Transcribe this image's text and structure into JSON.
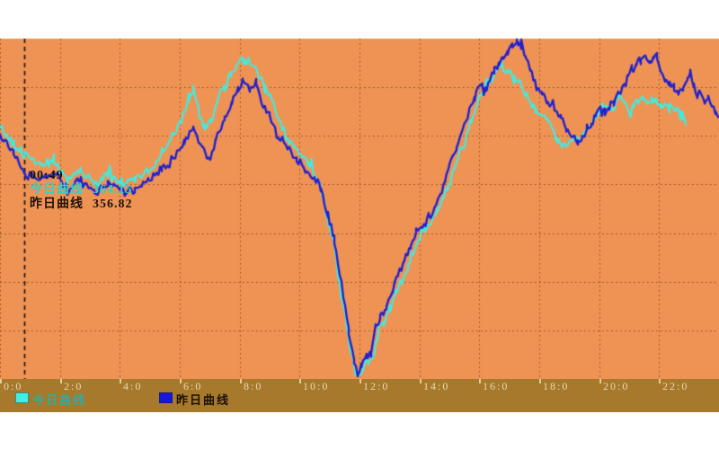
{
  "chart_data": {
    "type": "line",
    "title": "",
    "xlabel": "",
    "ylabel": "",
    "plot_bg": "#ef9355",
    "strip_bg": "#a6792c",
    "grid_color": "#6e3a14",
    "x_range_hours": [
      0,
      24
    ],
    "ylim": [
      272,
      412
    ],
    "y_gridline_count": 6,
    "grid": "dotted",
    "legend_position": "bottom",
    "x_ticks": [
      {
        "label": "0:0",
        "hour": 0
      },
      {
        "label": "2:0",
        "hour": 2
      },
      {
        "label": "4:0",
        "hour": 4
      },
      {
        "label": "6:0",
        "hour": 6
      },
      {
        "label": "8:0",
        "hour": 8
      },
      {
        "label": "10:0",
        "hour": 10
      },
      {
        "label": "12:0",
        "hour": 12
      },
      {
        "label": "14:0",
        "hour": 14
      },
      {
        "label": "16:0",
        "hour": 16
      },
      {
        "label": "18:0",
        "hour": 18
      },
      {
        "label": "20:0",
        "hour": 20
      },
      {
        "label": "22:0",
        "hour": 22
      }
    ],
    "crosshair": {
      "hour": 0.82,
      "time_label": "00:49",
      "color": "#1a1a1a",
      "style": "dashed"
    },
    "series": [
      {
        "name": "今日曲线",
        "color": "#45e9dc",
        "points": [
          [
            0,
            375.5
          ],
          [
            0.45,
            369.2
          ],
          [
            0.82,
            364.2
          ],
          [
            1.35,
            359.8
          ],
          [
            1.8,
            360.6
          ],
          [
            2.25,
            354.2
          ],
          [
            2.7,
            357.9
          ],
          [
            3.15,
            352.3
          ],
          [
            3.6,
            355.3
          ],
          [
            4.05,
            352.3
          ],
          [
            4.5,
            353.8
          ],
          [
            4.95,
            357.9
          ],
          [
            5.4,
            364.3
          ],
          [
            5.7,
            371
          ],
          [
            6,
            378.5
          ],
          [
            6.3,
            387.9
          ],
          [
            6.45,
            391.6
          ],
          [
            6.66,
            380.4
          ],
          [
            6.84,
            374.8
          ],
          [
            7.05,
            378.5
          ],
          [
            7.26,
            386
          ],
          [
            7.5,
            391.6
          ],
          [
            7.71,
            397.3
          ],
          [
            7.89,
            401.8
          ],
          [
            8.04,
            404
          ],
          [
            8.19,
            401
          ],
          [
            8.4,
            401.8
          ],
          [
            8.61,
            397.3
          ],
          [
            8.85,
            391.6
          ],
          [
            9.06,
            387.9
          ],
          [
            9.3,
            378.5
          ],
          [
            9.54,
            372.9
          ],
          [
            9.81,
            367.3
          ],
          [
            10.05,
            363.6
          ],
          [
            10.29,
            360.6
          ],
          [
            10.5,
            356.1
          ],
          [
            10.71,
            350.5
          ],
          [
            10.95,
            337.3
          ],
          [
            11.16,
            326.1
          ],
          [
            11.4,
            307.4
          ],
          [
            11.64,
            288.7
          ],
          [
            11.82,
            277.4
          ],
          [
            11.97,
            272.5
          ],
          [
            12.12,
            275.6
          ],
          [
            12.3,
            279.3
          ],
          [
            12.45,
            281.2
          ],
          [
            12.6,
            290.5
          ],
          [
            12.81,
            296.1
          ],
          [
            13.02,
            299.9
          ],
          [
            13.2,
            307.4
          ],
          [
            13.41,
            313
          ],
          [
            13.62,
            318.6
          ],
          [
            13.8,
            324.2
          ],
          [
            14.01,
            329.9
          ],
          [
            14.22,
            333.6
          ],
          [
            14.4,
            337.3
          ],
          [
            14.61,
            340.3
          ],
          [
            14.79,
            346.7
          ],
          [
            14.94,
            350.5
          ],
          [
            15.15,
            357.9
          ],
          [
            15.36,
            365.4
          ],
          [
            15.54,
            371.8
          ],
          [
            15.75,
            378.5
          ],
          [
            15.96,
            386
          ],
          [
            16.14,
            391.6
          ],
          [
            16.35,
            394.3
          ],
          [
            16.5,
            397.3
          ],
          [
            16.65,
            400.3
          ],
          [
            16.74,
            401.8
          ],
          [
            16.86,
            399.1
          ],
          [
            17.01,
            397.3
          ],
          [
            17.16,
            395.4
          ],
          [
            17.34,
            393.5
          ],
          [
            17.52,
            389.8
          ],
          [
            17.7,
            386
          ],
          [
            17.88,
            382.3
          ],
          [
            18.06,
            380.4
          ],
          [
            18.24,
            378.5
          ],
          [
            18.42,
            376.7
          ],
          [
            18.6,
            371
          ],
          [
            18.78,
            367.3
          ],
          [
            18.96,
            368.1
          ],
          [
            19.14,
            371
          ],
          [
            19.32,
            369.2
          ],
          [
            19.5,
            371.8
          ],
          [
            19.65,
            374.8
          ],
          [
            19.8,
            378.5
          ],
          [
            19.95,
            382.3
          ],
          [
            20.1,
            384.2
          ],
          [
            20.25,
            385.3
          ],
          [
            20.4,
            383
          ],
          [
            20.55,
            385.3
          ],
          [
            20.7,
            387.9
          ],
          [
            20.85,
            386
          ],
          [
            21,
            382.3
          ],
          [
            21.15,
            384.2
          ],
          [
            21.3,
            386
          ],
          [
            21.45,
            386.8
          ],
          [
            21.6,
            385.3
          ],
          [
            21.75,
            386.8
          ],
          [
            21.9,
            386
          ],
          [
            22.05,
            384.2
          ],
          [
            22.2,
            385.3
          ],
          [
            22.35,
            383
          ],
          [
            22.5,
            384.2
          ],
          [
            22.65,
            382.3
          ],
          [
            22.74,
            380.4
          ],
          [
            22.83,
            378.5
          ],
          [
            22.89,
            375.9
          ]
        ]
      },
      {
        "name": "昨日曲线",
        "color": "#2222cd",
        "points": [
          [
            0,
            371.8
          ],
          [
            0.45,
            365.4
          ],
          [
            0.82,
            356.8
          ],
          [
            1.35,
            354.2
          ],
          [
            1.8,
            356.8
          ],
          [
            2.25,
            350.5
          ],
          [
            2.7,
            354.2
          ],
          [
            3.15,
            348.6
          ],
          [
            3.6,
            352.3
          ],
          [
            4.05,
            349.3
          ],
          [
            4.5,
            349.7
          ],
          [
            4.95,
            354.2
          ],
          [
            5.4,
            357.9
          ],
          [
            5.85,
            363.6
          ],
          [
            6.15,
            369.2
          ],
          [
            6.45,
            375.9
          ],
          [
            6.75,
            367.3
          ],
          [
            6.96,
            362.8
          ],
          [
            7.2,
            369.2
          ],
          [
            7.5,
            378.5
          ],
          [
            7.74,
            386
          ],
          [
            7.95,
            391.6
          ],
          [
            8.1,
            394.6
          ],
          [
            8.34,
            391.6
          ],
          [
            8.55,
            393.5
          ],
          [
            8.79,
            383.4
          ],
          [
            9,
            380.4
          ],
          [
            9.3,
            371
          ],
          [
            9.6,
            367.3
          ],
          [
            9.9,
            362.4
          ],
          [
            10.2,
            357.9
          ],
          [
            10.5,
            354.2
          ],
          [
            10.71,
            350.5
          ],
          [
            10.95,
            339.2
          ],
          [
            11.16,
            329.9
          ],
          [
            11.4,
            311.1
          ],
          [
            11.64,
            292.4
          ],
          [
            11.82,
            279.3
          ],
          [
            11.94,
            273.7
          ],
          [
            12.06,
            277.4
          ],
          [
            12.24,
            281.2
          ],
          [
            12.39,
            283
          ],
          [
            12.54,
            292.4
          ],
          [
            12.69,
            298
          ],
          [
            12.9,
            301.8
          ],
          [
            13.11,
            309.2
          ],
          [
            13.29,
            314.9
          ],
          [
            13.5,
            320.5
          ],
          [
            13.71,
            326.1
          ],
          [
            13.89,
            331.7
          ],
          [
            14.1,
            334.4
          ],
          [
            14.31,
            339.2
          ],
          [
            14.49,
            341.8
          ],
          [
            14.7,
            348.6
          ],
          [
            14.85,
            352.3
          ],
          [
            15,
            359.8
          ],
          [
            15.24,
            367.3
          ],
          [
            15.45,
            374.8
          ],
          [
            15.66,
            382.3
          ],
          [
            15.84,
            387.9
          ],
          [
            15.99,
            393.5
          ],
          [
            16.2,
            389.8
          ],
          [
            16.35,
            395.4
          ],
          [
            16.5,
            399.1
          ],
          [
            16.65,
            401
          ],
          [
            16.8,
            404
          ],
          [
            16.95,
            406.6
          ],
          [
            17.1,
            408.5
          ],
          [
            17.25,
            410.4
          ],
          [
            17.4,
            408.5
          ],
          [
            17.55,
            404.8
          ],
          [
            17.7,
            399.1
          ],
          [
            17.91,
            391.6
          ],
          [
            18.09,
            389.8
          ],
          [
            18.3,
            386
          ],
          [
            18.51,
            383
          ],
          [
            18.72,
            380.4
          ],
          [
            18.9,
            374.8
          ],
          [
            19.11,
            371
          ],
          [
            19.29,
            369.2
          ],
          [
            19.44,
            371
          ],
          [
            19.59,
            374.8
          ],
          [
            19.74,
            376.7
          ],
          [
            19.89,
            380.4
          ],
          [
            20.04,
            383
          ],
          [
            20.19,
            382.3
          ],
          [
            20.34,
            384.2
          ],
          [
            20.49,
            386
          ],
          [
            20.64,
            389.8
          ],
          [
            20.79,
            391.6
          ],
          [
            20.94,
            395.4
          ],
          [
            21.09,
            399.1
          ],
          [
            21.24,
            401
          ],
          [
            21.39,
            402.9
          ],
          [
            21.54,
            404
          ],
          [
            21.69,
            401.7
          ],
          [
            21.81,
            404
          ],
          [
            21.93,
            404.8
          ],
          [
            22.05,
            399.1
          ],
          [
            22.2,
            395.4
          ],
          [
            22.35,
            393.5
          ],
          [
            22.5,
            391.6
          ],
          [
            22.65,
            389.8
          ],
          [
            22.8,
            391.6
          ],
          [
            22.95,
            395.4
          ],
          [
            23.04,
            397.3
          ],
          [
            23.16,
            391.6
          ],
          [
            23.28,
            387.9
          ],
          [
            23.4,
            389.8
          ],
          [
            23.52,
            386
          ],
          [
            23.64,
            387.9
          ],
          [
            23.76,
            383.4
          ],
          [
            23.88,
            382.3
          ],
          [
            23.97,
            379.3
          ]
        ]
      }
    ]
  },
  "tooltip": {
    "time": "00:49",
    "rows": [
      {
        "label": "今日曲线",
        "value": "364.15"
      },
      {
        "label": "昨日曲线",
        "value": "356.82"
      }
    ]
  },
  "legend": [
    {
      "label": "今日曲线",
      "swatch": "#3ff0e4"
    },
    {
      "label": "昨日曲线",
      "swatch": "#1717e2"
    }
  ]
}
